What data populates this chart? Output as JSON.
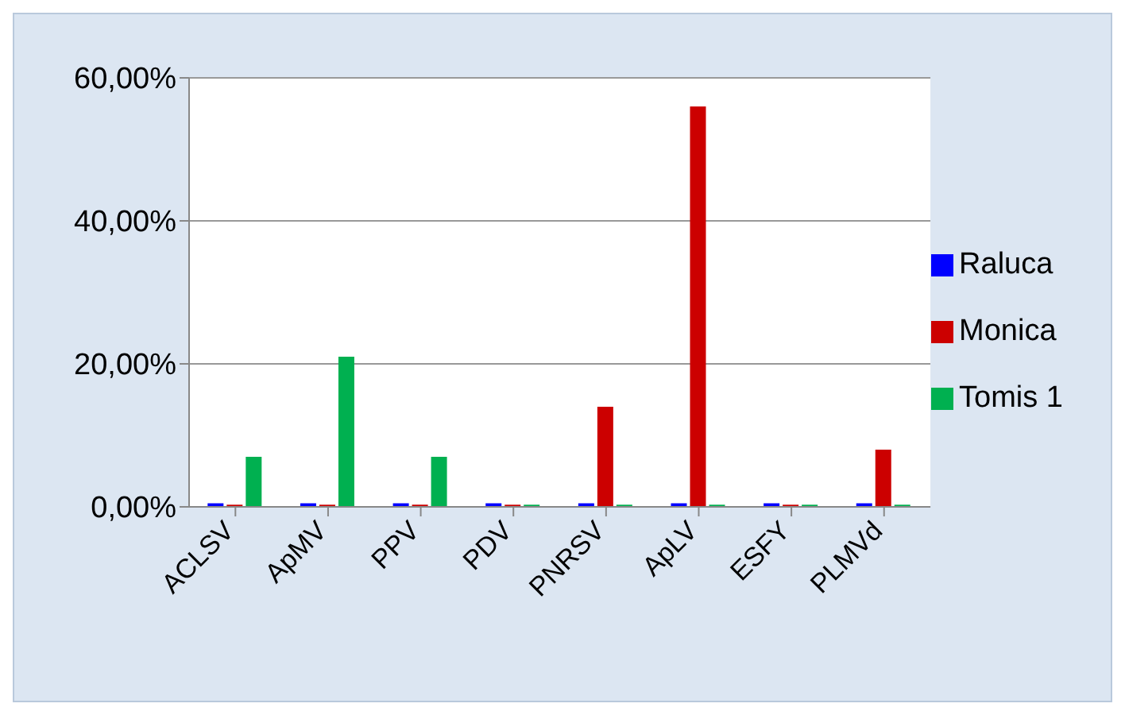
{
  "chart_data": {
    "type": "bar",
    "categories": [
      "ACLSV",
      "ApMV",
      "PPV",
      "PDV",
      "PNRSV",
      "ApLV",
      "ESFY",
      "PLMVd"
    ],
    "series": [
      {
        "name": "Raluca",
        "color": "#0000ff",
        "values": [
          0.5,
          0.5,
          0.5,
          0.5,
          0.5,
          0.5,
          0.5,
          0.5
        ]
      },
      {
        "name": "Monica",
        "color": "#cc0000",
        "values": [
          0.3,
          0.3,
          0.3,
          0.3,
          14,
          56,
          0.3,
          8
        ]
      },
      {
        "name": "Tomis 1",
        "color": "#00b050",
        "values": [
          7,
          21,
          7,
          0.3,
          0.3,
          0.3,
          0.3,
          0.3
        ]
      }
    ],
    "ylim": [
      0,
      60
    ],
    "yticks": [
      {
        "value": 0,
        "label": "0,00%"
      },
      {
        "value": 20,
        "label": "20,00%"
      },
      {
        "value": 40,
        "label": "40,00%"
      },
      {
        "value": 60,
        "label": "60,00%"
      }
    ],
    "grid": "y",
    "legend": "right"
  }
}
